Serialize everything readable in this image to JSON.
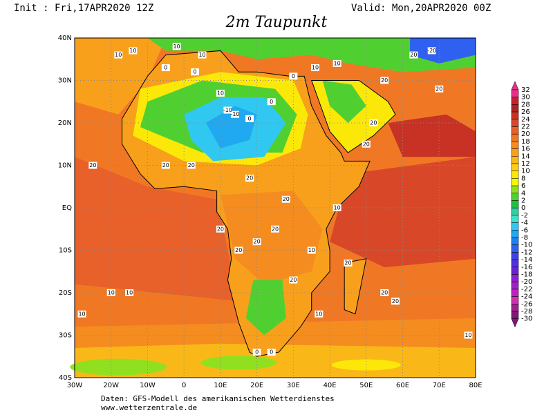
{
  "header": {
    "init": "Init : Fri,17APR2020 12Z",
    "valid": "Valid: Mon,20APR2020 00Z",
    "title": "2m Taupunkt"
  },
  "map": {
    "lat_labels": [
      "40N",
      "30N",
      "20N",
      "10N",
      "EQ",
      "10S",
      "20S",
      "30S",
      "40S"
    ],
    "lon_labels": [
      "30W",
      "20W",
      "10W",
      "0",
      "10E",
      "20E",
      "30E",
      "40E",
      "50E",
      "60E",
      "70E",
      "80E"
    ],
    "contour_labels": [
      10,
      10,
      10,
      10,
      0,
      0,
      10,
      -10,
      0,
      0,
      0,
      10,
      10,
      20,
      20,
      20,
      20,
      20,
      20,
      20,
      20,
      10,
      20,
      20,
      20,
      20,
      10,
      10,
      20,
      20,
      20,
      10,
      10,
      10,
      20,
      20,
      0,
      0,
      -10,
      -20,
      10,
      20
    ]
  },
  "colorbar": {
    "labels": [
      32,
      30,
      28,
      26,
      24,
      22,
      20,
      18,
      16,
      14,
      12,
      10,
      8,
      6,
      4,
      2,
      0,
      -2,
      -4,
      -6,
      -8,
      -10,
      -12,
      -14,
      -16,
      -18,
      -20,
      -22,
      -24,
      -26,
      -28,
      -30
    ],
    "colors": [
      "#e8308a",
      "#c8202a",
      "#b02020",
      "#c83224",
      "#d84828",
      "#e8602a",
      "#f07824",
      "#f48c20",
      "#f8a01c",
      "#fab818",
      "#fcd010",
      "#fce808",
      "#f8f800",
      "#90e020",
      "#50d030",
      "#20c040",
      "#30d0a0",
      "#40e0d0",
      "#30c8f0",
      "#20a8f0",
      "#2080f0",
      "#3060f0",
      "#4040e8",
      "#5030e0",
      "#6a20d8",
      "#8a20d0",
      "#a020c8",
      "#c020c0",
      "#d030b0",
      "#a02090",
      "#801878"
    ]
  },
  "footer": {
    "source": "Daten: GFS-Modell des amerikanischen Wetterdienstes",
    "site": "www.wetterzentrale.de"
  }
}
